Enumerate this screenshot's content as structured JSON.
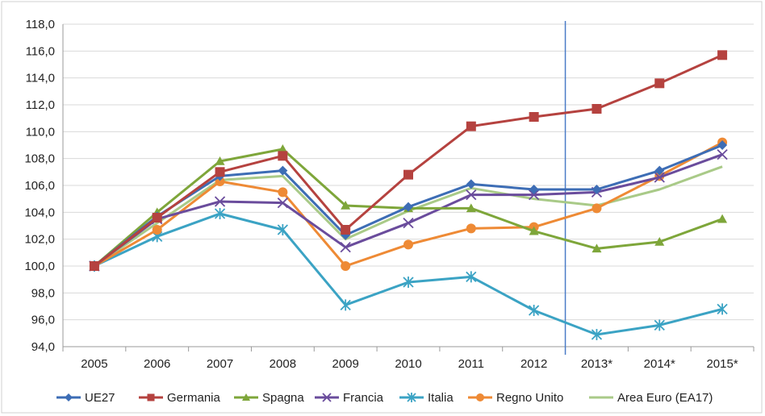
{
  "chart_data": {
    "type": "line",
    "title": "",
    "xlabel": "",
    "ylabel": "",
    "categories": [
      "2005",
      "2006",
      "2007",
      "2008",
      "2009",
      "2010",
      "2011",
      "2012",
      "2013*",
      "2014*",
      "2015*"
    ],
    "ylim": [
      94.0,
      118.0
    ],
    "y_ticks": [
      "94,0",
      "96,0",
      "98,0",
      "100,0",
      "102,0",
      "104,0",
      "106,0",
      "108,0",
      "110,0",
      "112,0",
      "114,0",
      "116,0",
      "118,0"
    ],
    "grid": true,
    "legend_position": "bottom",
    "forecast_divider_after": "2012",
    "series": [
      {
        "name": "UE27",
        "color": "#3d6db5",
        "marker": "diamond",
        "values": [
          100.0,
          103.7,
          106.7,
          107.1,
          102.3,
          104.4,
          106.1,
          105.7,
          105.7,
          107.1,
          109.0
        ]
      },
      {
        "name": "Germania",
        "color": "#b5423f",
        "marker": "square",
        "values": [
          100.0,
          103.6,
          107.0,
          108.2,
          102.7,
          106.8,
          110.4,
          111.1,
          111.7,
          113.6,
          115.7
        ]
      },
      {
        "name": "Spagna",
        "color": "#7ea63a",
        "marker": "triangle",
        "values": [
          100.0,
          104.0,
          107.8,
          108.7,
          104.5,
          104.3,
          104.3,
          102.6,
          101.3,
          101.8,
          103.5
        ]
      },
      {
        "name": "Francia",
        "color": "#6a4c9c",
        "marker": "x",
        "values": [
          100.0,
          103.5,
          104.8,
          104.7,
          101.4,
          103.2,
          105.3,
          105.3,
          105.5,
          106.6,
          108.3
        ]
      },
      {
        "name": "Italia",
        "color": "#3ba3c4",
        "marker": "star",
        "values": [
          100.0,
          102.2,
          103.9,
          102.7,
          97.1,
          98.8,
          99.2,
          96.7,
          94.9,
          95.6,
          96.8
        ]
      },
      {
        "name": "Regno Unito",
        "color": "#ee8a35",
        "marker": "circle",
        "values": [
          100.0,
          102.7,
          106.3,
          105.5,
          100.0,
          101.6,
          102.8,
          102.9,
          104.3,
          106.7,
          109.2
        ]
      },
      {
        "name": "Area Euro (EA17)",
        "color": "#a9ca88",
        "marker": "none",
        "values": [
          100.0,
          103.2,
          106.4,
          106.7,
          102.0,
          104.1,
          105.8,
          105.0,
          104.5,
          105.7,
          107.4
        ]
      }
    ]
  }
}
